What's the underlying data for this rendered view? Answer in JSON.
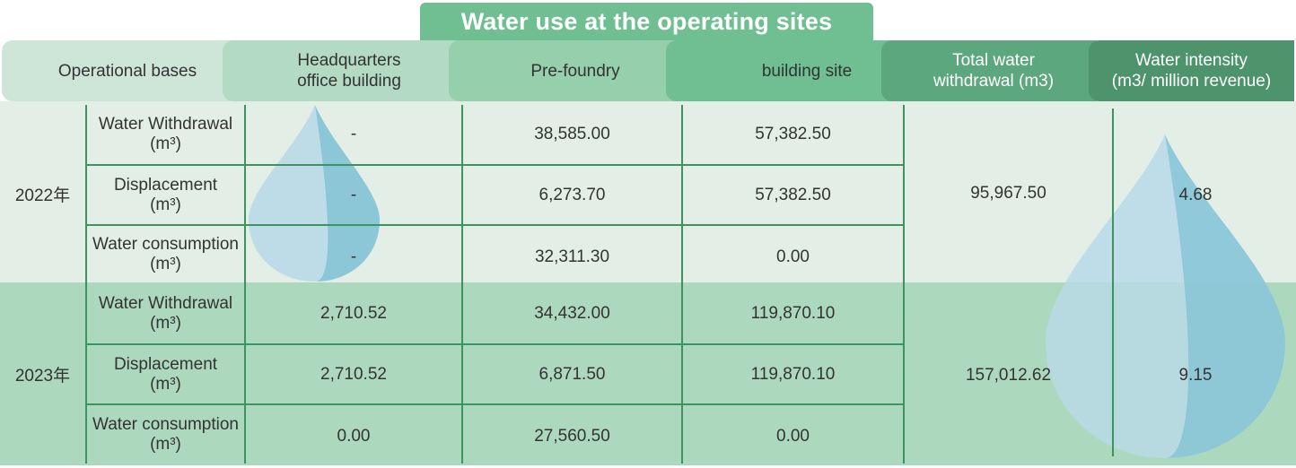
{
  "title": "Water use at the operating sites",
  "headers": {
    "operational_bases": "Operational bases",
    "hq_line1": "Headquarters",
    "hq_line2": "office building",
    "pre_foundry": "Pre-foundry",
    "building_site": "building site",
    "total_line1": "Total water",
    "total_line2": "withdrawal (m3)",
    "intensity_line1": "Water intensity",
    "intensity_line2": "(m3/ million revenue)"
  },
  "years": [
    {
      "label": "2022年",
      "total": "95,967.50",
      "intensity": "4.68",
      "rows": [
        {
          "metric": "Water Withdrawal",
          "unit": "(m³)",
          "hq": "-",
          "pre": "38,585.00",
          "site": "57,382.50"
        },
        {
          "metric": "Displacement",
          "unit": "(m³)",
          "hq": "-",
          "pre": "6,273.70",
          "site": "57,382.50"
        },
        {
          "metric": "Water consumption",
          "unit": "(m³)",
          "hq": "-",
          "pre": "32,311.30",
          "site": "0.00"
        }
      ]
    },
    {
      "label": "2023年",
      "total": "157,012.62",
      "intensity": "9.15",
      "rows": [
        {
          "metric": "Water Withdrawal",
          "unit": "(m³)",
          "hq": "2,710.52",
          "pre": "34,432.00",
          "site": "119,870.10"
        },
        {
          "metric": "Displacement",
          "unit": "(m³)",
          "hq": "2,710.52",
          "pre": "6,871.50",
          "site": "119,870.10"
        },
        {
          "metric": "Water consumption",
          "unit": "(m³)",
          "hq": "0.00",
          "pre": "27,560.50",
          "site": "0.00"
        }
      ]
    }
  ],
  "colors": {
    "title_bg": "#6fbf92",
    "band_2022": "#e2eee6",
    "band_2023": "#acd9be",
    "grid_line": "#3c9460",
    "drop_light": "#b9d9e8",
    "drop_dark": "#7cc0d3"
  }
}
